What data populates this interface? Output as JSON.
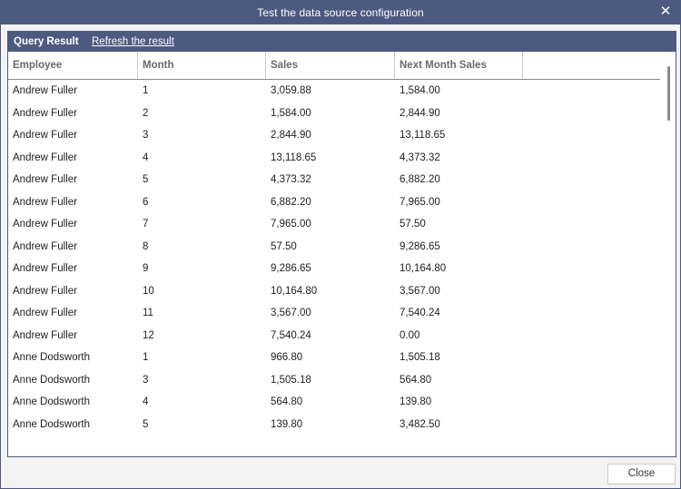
{
  "window": {
    "title": "Test the data source configuration",
    "close_glyph": "✕"
  },
  "panel": {
    "query_result_label": "Query Result",
    "refresh_link": "Refresh the result"
  },
  "table": {
    "columns": [
      "Employee",
      "Month",
      "Sales",
      "Next Month Sales",
      ""
    ],
    "rows": [
      [
        "Andrew Fuller",
        "1",
        "3,059.88",
        "1,584.00"
      ],
      [
        "Andrew Fuller",
        "2",
        "1,584.00",
        "2,844.90"
      ],
      [
        "Andrew Fuller",
        "3",
        "2,844.90",
        "13,118.65"
      ],
      [
        "Andrew Fuller",
        "4",
        "13,118.65",
        "4,373.32"
      ],
      [
        "Andrew Fuller",
        "5",
        "4,373.32",
        "6,882.20"
      ],
      [
        "Andrew Fuller",
        "6",
        "6,882.20",
        "7,965.00"
      ],
      [
        "Andrew Fuller",
        "7",
        "7,965.00",
        "57.50"
      ],
      [
        "Andrew Fuller",
        "8",
        "57.50",
        "9,286.65"
      ],
      [
        "Andrew Fuller",
        "9",
        "9,286.65",
        "10,164.80"
      ],
      [
        "Andrew Fuller",
        "10",
        "10,164.80",
        "3,567.00"
      ],
      [
        "Andrew Fuller",
        "11",
        "3,567.00",
        "7,540.24"
      ],
      [
        "Andrew Fuller",
        "12",
        "7,540.24",
        "0.00"
      ],
      [
        "Anne Dodsworth",
        "1",
        "966.80",
        "1,505.18"
      ],
      [
        "Anne Dodsworth",
        "3",
        "1,505.18",
        "564.80"
      ],
      [
        "Anne Dodsworth",
        "4",
        "564.80",
        "139.80"
      ],
      [
        "Anne Dodsworth",
        "5",
        "139.80",
        "3,482.50"
      ]
    ]
  },
  "footer": {
    "close_label": "Close"
  },
  "colors": {
    "accent": "#4d5a80"
  }
}
